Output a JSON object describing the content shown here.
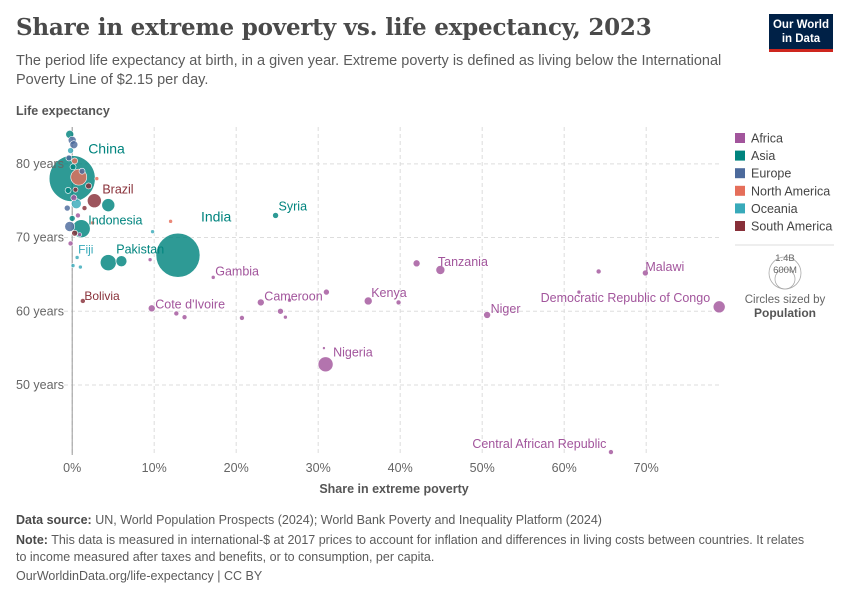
{
  "header": {
    "title": "Share in extreme poverty vs. life expectancy, 2023",
    "subtitle": "The period life expectancy at birth, in a given year. Extreme poverty is defined as living below the International Poverty Line of $2.15 per day."
  },
  "logo": {
    "line1": "Our World",
    "line2": "in Data"
  },
  "colors": {
    "Africa": "#a2559c",
    "Asia": "#00847e",
    "Europe": "#4c6a9c",
    "North America": "#e56e5a",
    "Oceania": "#38aaba",
    "South America": "#883039"
  },
  "legend": {
    "items": [
      "Africa",
      "Asia",
      "Europe",
      "North America",
      "Oceania",
      "South America"
    ],
    "size_title": "Circles sized by",
    "size_variable": "Population",
    "size_big_label": "1.4B",
    "size_small_label": "600M"
  },
  "footer": {
    "source_label": "Data source:",
    "source_text": "UN, World Population Prospects (2024); World Bank Poverty and Inequality Platform (2024)",
    "note_label": "Note:",
    "note_text": "This data is measured in international-$ at 2017 prices to account for inflation and differences in living costs between countries. It relates to income measured after taxes and benefits, or to consumption, per capita.",
    "url": "OurWorldinData.org/life-expectancy | CC BY"
  },
  "chart_data": {
    "type": "scatter",
    "title": "Share in extreme poverty vs. life expectancy, 2023",
    "xlabel": "Share in extreme poverty",
    "ylabel": "Life expectancy",
    "xlim": [
      -1,
      79
    ],
    "ylim": [
      40.5,
      85
    ],
    "x_ticks": [
      0,
      10,
      20,
      30,
      40,
      50,
      60,
      70
    ],
    "x_tick_labels": [
      "0%",
      "10%",
      "20%",
      "30%",
      "40%",
      "50%",
      "60%",
      "70%"
    ],
    "y_ticks": [
      50,
      60,
      70,
      80
    ],
    "y_tick_labels": [
      "50 years",
      "60 years",
      "70 years",
      "80 years"
    ],
    "labeled_points": [
      {
        "name": "China",
        "x": 0,
        "y": 78,
        "r": 23,
        "region": "Asia"
      },
      {
        "name": "India",
        "x": 12.9,
        "y": 67.6,
        "r": 22,
        "region": "Asia"
      },
      {
        "name": "Brazil",
        "x": 2.7,
        "y": 75,
        "r": 7,
        "region": "South America"
      },
      {
        "name": "Indonesia",
        "x": 1.1,
        "y": 71.2,
        "r": 9,
        "region": "Asia"
      },
      {
        "name": "Syria",
        "x": 24.8,
        "y": 73.0,
        "r": 3,
        "region": "Asia"
      },
      {
        "name": "Pakistan",
        "x": 4.4,
        "y": 66.6,
        "r": 8,
        "region": "Asia"
      },
      {
        "name": "Fiji",
        "x": 0.6,
        "y": 67.3,
        "r": 2,
        "region": "Oceania"
      },
      {
        "name": "Bolivia",
        "x": 1.3,
        "y": 61.4,
        "r": 2.5,
        "region": "South America"
      },
      {
        "name": "Cote d'Ivoire",
        "x": 9.7,
        "y": 60.4,
        "r": 3.5,
        "region": "Africa"
      },
      {
        "name": "Gambia",
        "x": 17.2,
        "y": 64.6,
        "r": 2,
        "region": "Africa"
      },
      {
        "name": "Cameroon",
        "x": 23.0,
        "y": 61.2,
        "r": 3.5,
        "region": "Africa"
      },
      {
        "name": "Kenya",
        "x": 36.1,
        "y": 61.4,
        "r": 4,
        "region": "Africa"
      },
      {
        "name": "Tanzania",
        "x": 44.9,
        "y": 65.6,
        "r": 4.5,
        "region": "Africa"
      },
      {
        "name": "Niger",
        "x": 50.6,
        "y": 59.5,
        "r": 3.5,
        "region": "Africa"
      },
      {
        "name": "Malawi",
        "x": 69.9,
        "y": 65.2,
        "r": 3,
        "region": "Africa"
      },
      {
        "name": "Democratic Republic of Congo",
        "x": 78.9,
        "y": 60.6,
        "r": 6,
        "region": "Africa"
      },
      {
        "name": "Nigeria",
        "x": 30.9,
        "y": 52.8,
        "r": 7.5,
        "region": "Africa"
      },
      {
        "name": "Central African Republic",
        "x": 65.7,
        "y": 40.9,
        "r": 2.5,
        "region": "Africa"
      }
    ],
    "other_points": [
      {
        "x": -0.3,
        "y": 84.0,
        "r": 4,
        "region": "Asia"
      },
      {
        "x": 0.0,
        "y": 83.2,
        "r": 4,
        "region": "Europe"
      },
      {
        "x": 0.2,
        "y": 82.6,
        "r": 4,
        "region": "Europe"
      },
      {
        "x": -0.2,
        "y": 81.8,
        "r": 3,
        "region": "Oceania"
      },
      {
        "x": -0.4,
        "y": 80.8,
        "r": 3,
        "region": "Europe"
      },
      {
        "x": 0.3,
        "y": 80.4,
        "r": 3,
        "region": "North America"
      },
      {
        "x": 0.1,
        "y": 79.6,
        "r": 3,
        "region": "Asia"
      },
      {
        "x": 0.8,
        "y": 78.2,
        "r": 8,
        "region": "North America"
      },
      {
        "x": 1.2,
        "y": 79.0,
        "r": 3,
        "region": "Europe"
      },
      {
        "x": 2.0,
        "y": 77.0,
        "r": 3,
        "region": "South America"
      },
      {
        "x": 3.0,
        "y": 78.0,
        "r": 2,
        "region": "North America"
      },
      {
        "x": -0.5,
        "y": 76.4,
        "r": 3,
        "region": "Asia"
      },
      {
        "x": 0.4,
        "y": 76.5,
        "r": 2.5,
        "region": "South America"
      },
      {
        "x": 0.2,
        "y": 75.4,
        "r": 3,
        "region": "Africa"
      },
      {
        "x": 0.5,
        "y": 74.6,
        "r": 5,
        "region": "Oceania"
      },
      {
        "x": 4.4,
        "y": 74.4,
        "r": 6.5,
        "region": "Asia"
      },
      {
        "x": -0.6,
        "y": 74.0,
        "r": 3,
        "region": "Europe"
      },
      {
        "x": 1.5,
        "y": 74.0,
        "r": 2.5,
        "region": "South America"
      },
      {
        "x": 0.7,
        "y": 73.0,
        "r": 2.5,
        "region": "Africa"
      },
      {
        "x": 2.5,
        "y": 72.0,
        "r": 2,
        "region": "North America"
      },
      {
        "x": 12.0,
        "y": 72.2,
        "r": 2,
        "region": "North America"
      },
      {
        "x": 0.0,
        "y": 72.6,
        "r": 3,
        "region": "Asia"
      },
      {
        "x": -0.3,
        "y": 71.5,
        "r": 5,
        "region": "Europe"
      },
      {
        "x": 0.3,
        "y": 70.6,
        "r": 3,
        "region": "South America"
      },
      {
        "x": 0.9,
        "y": 70.4,
        "r": 2,
        "region": "Africa"
      },
      {
        "x": 9.8,
        "y": 70.8,
        "r": 2,
        "region": "Oceania"
      },
      {
        "x": -0.2,
        "y": 69.2,
        "r": 2.5,
        "region": "Africa"
      },
      {
        "x": 6.0,
        "y": 66.8,
        "r": 5.5,
        "region": "Asia"
      },
      {
        "x": 0.1,
        "y": 66.2,
        "r": 2,
        "region": "Oceania"
      },
      {
        "x": 1.0,
        "y": 66.0,
        "r": 2,
        "region": "Oceania"
      },
      {
        "x": 9.5,
        "y": 67.0,
        "r": 2,
        "region": "Africa"
      },
      {
        "x": 42.0,
        "y": 66.5,
        "r": 3.5,
        "region": "Africa"
      },
      {
        "x": 64.2,
        "y": 65.4,
        "r": 2.5,
        "region": "Africa"
      },
      {
        "x": 61.8,
        "y": 62.6,
        "r": 2,
        "region": "Africa"
      },
      {
        "x": 31.0,
        "y": 62.6,
        "r": 3,
        "region": "Africa"
      },
      {
        "x": 26.5,
        "y": 61.5,
        "r": 2,
        "region": "Africa"
      },
      {
        "x": 39.8,
        "y": 61.2,
        "r": 2.5,
        "region": "Africa"
      },
      {
        "x": 12.7,
        "y": 59.7,
        "r": 2.5,
        "region": "Africa"
      },
      {
        "x": 13.7,
        "y": 59.2,
        "r": 2.5,
        "region": "Africa"
      },
      {
        "x": 20.7,
        "y": 59.1,
        "r": 2.5,
        "region": "Africa"
      },
      {
        "x": 25.4,
        "y": 60.0,
        "r": 3,
        "region": "Africa"
      },
      {
        "x": 26.0,
        "y": 59.2,
        "r": 2,
        "region": "Africa"
      },
      {
        "x": 30.7,
        "y": 55.0,
        "r": 1.5,
        "region": "Africa"
      }
    ]
  }
}
